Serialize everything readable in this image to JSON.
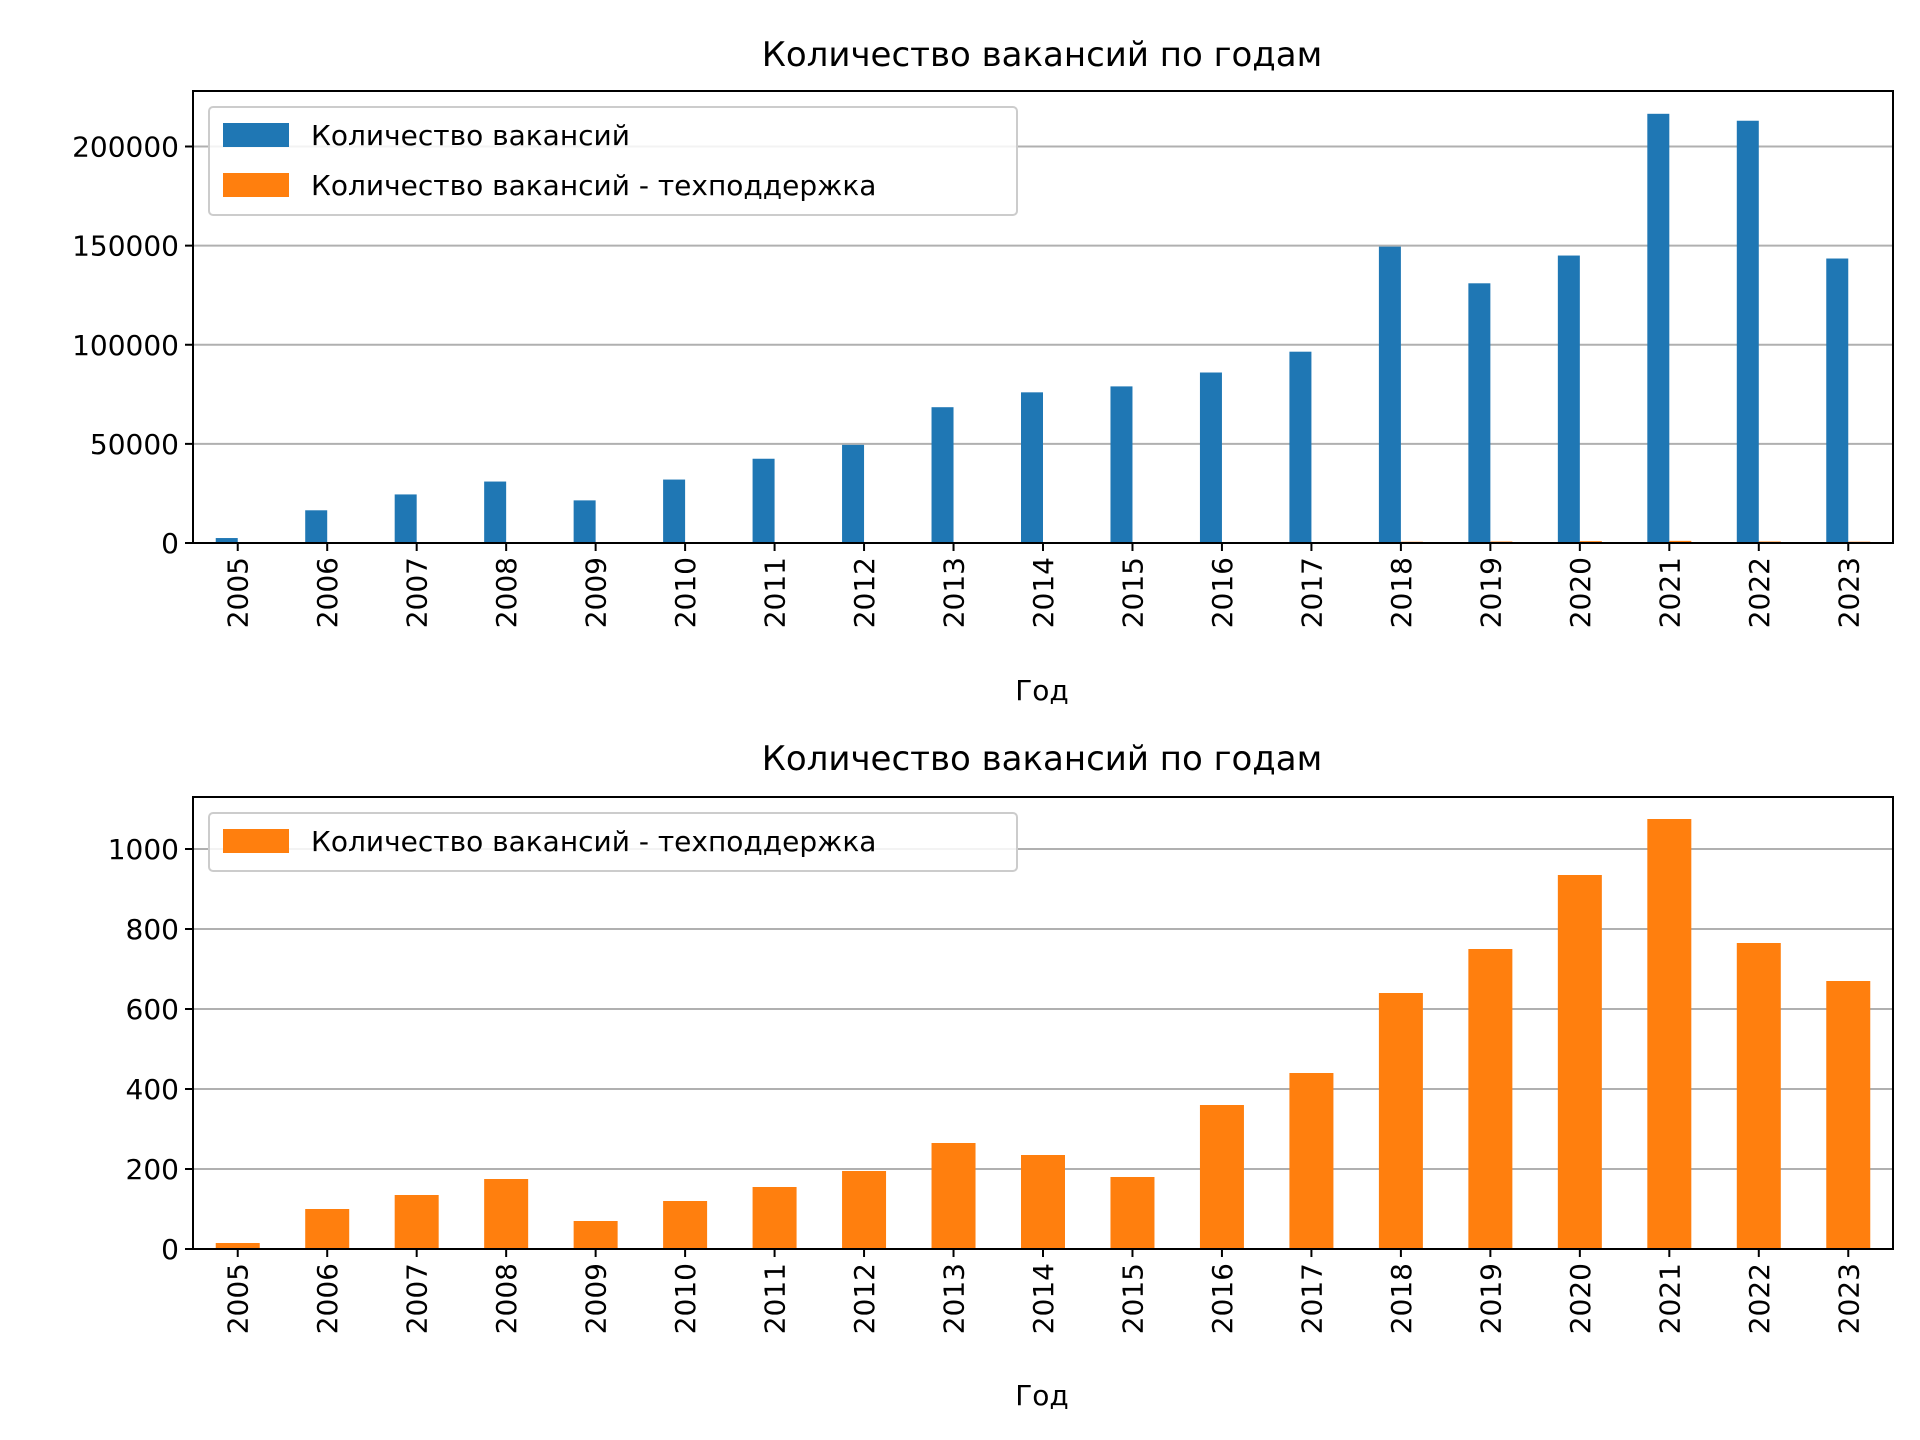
{
  "chart_data": [
    {
      "type": "bar",
      "title": "Количество вакансий по годам",
      "xlabel": "Год",
      "ylabel": "",
      "categories": [
        "2005",
        "2006",
        "2007",
        "2008",
        "2009",
        "2010",
        "2011",
        "2012",
        "2013",
        "2014",
        "2015",
        "2016",
        "2017",
        "2018",
        "2019",
        "2020",
        "2021",
        "2022",
        "2023"
      ],
      "series": [
        {
          "name": "Количество вакансий",
          "color": "#1f77b4",
          "values": [
            2500,
            16500,
            24500,
            31000,
            21500,
            32000,
            42500,
            49500,
            68500,
            76000,
            79000,
            86000,
            96500,
            149500,
            131000,
            145000,
            216500,
            213000,
            143500
          ]
        },
        {
          "name": "Количество вакансий - техподдержка",
          "color": "#ff7f0e",
          "values": [
            15,
            100,
            135,
            175,
            70,
            120,
            155,
            195,
            265,
            235,
            180,
            360,
            440,
            640,
            750,
            935,
            1075,
            765,
            670
          ]
        }
      ],
      "ylim": [
        0,
        228000
      ],
      "yticks": [
        0,
        50000,
        100000,
        150000,
        200000
      ],
      "grid": "y",
      "legend_position": "top-left"
    },
    {
      "type": "bar",
      "title": "Количество вакансий по годам",
      "xlabel": "Год",
      "ylabel": "",
      "categories": [
        "2005",
        "2006",
        "2007",
        "2008",
        "2009",
        "2010",
        "2011",
        "2012",
        "2013",
        "2014",
        "2015",
        "2016",
        "2017",
        "2018",
        "2019",
        "2020",
        "2021",
        "2022",
        "2023"
      ],
      "series": [
        {
          "name": "Количество вакансий - техподдержка",
          "color": "#ff7f0e",
          "values": [
            15,
            100,
            135,
            175,
            70,
            120,
            155,
            195,
            265,
            235,
            180,
            360,
            440,
            640,
            750,
            935,
            1075,
            765,
            670
          ]
        }
      ],
      "ylim": [
        0,
        1130
      ],
      "yticks": [
        0,
        200,
        400,
        600,
        800,
        1000
      ],
      "grid": "y",
      "legend_position": "top-left"
    }
  ]
}
